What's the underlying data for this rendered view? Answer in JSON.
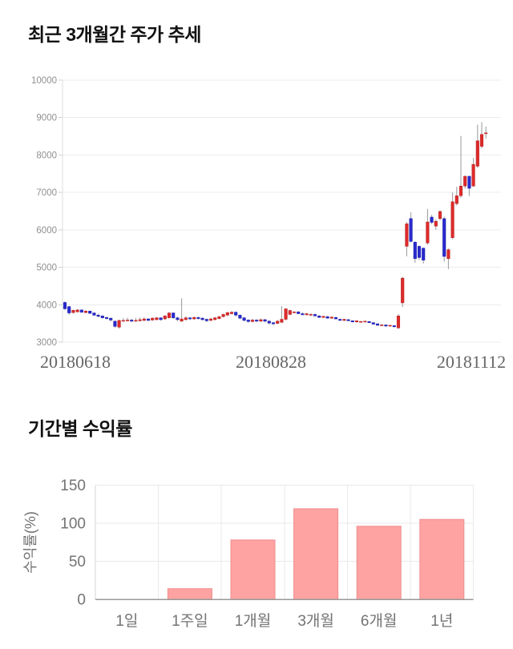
{
  "page": {
    "background": "#ffffff"
  },
  "chart_data": [
    {
      "type": "candlestick",
      "title": "최근 3개월간 주가 추세",
      "x_labels": [
        "20180618",
        "20180828",
        "20181112"
      ],
      "y_ticks": [
        10000,
        9000,
        8000,
        7000,
        6000,
        5000,
        4000,
        3000
      ],
      "ylim": [
        3000,
        10000
      ],
      "grid": "horizontal-only",
      "up_color": "#dd2b2b",
      "down_color": "#2a2ace",
      "wick_color": "#999999",
      "axis_text_color": "#8f8f8f",
      "x_label_color": "#666666",
      "ohlc": [
        [
          4060,
          4090,
          3860,
          3890
        ],
        [
          3950,
          3970,
          3730,
          3780
        ],
        [
          3790,
          3870,
          3760,
          3850
        ],
        [
          3810,
          3880,
          3790,
          3860
        ],
        [
          3860,
          3870,
          3780,
          3800
        ],
        [
          3790,
          3850,
          3770,
          3830
        ],
        [
          3830,
          3840,
          3750,
          3770
        ],
        [
          3780,
          3790,
          3700,
          3720
        ],
        [
          3720,
          3760,
          3660,
          3690
        ],
        [
          3700,
          3710,
          3630,
          3650
        ],
        [
          3660,
          3680,
          3600,
          3630
        ],
        [
          3640,
          3650,
          3550,
          3590
        ],
        [
          3560,
          3570,
          3380,
          3420
        ],
        [
          3400,
          3600,
          3360,
          3580
        ],
        [
          3560,
          3640,
          3540,
          3580
        ],
        [
          3570,
          3650,
          3550,
          3590
        ],
        [
          3590,
          3620,
          3530,
          3560
        ],
        [
          3560,
          3650,
          3540,
          3580
        ],
        [
          3570,
          3660,
          3550,
          3600
        ],
        [
          3580,
          3660,
          3560,
          3620
        ],
        [
          3620,
          3640,
          3560,
          3580
        ],
        [
          3590,
          3660,
          3570,
          3640
        ],
        [
          3600,
          3670,
          3580,
          3650
        ],
        [
          3650,
          3660,
          3570,
          3600
        ],
        [
          3620,
          3720,
          3600,
          3700
        ],
        [
          3650,
          3800,
          3640,
          3780
        ],
        [
          3780,
          3790,
          3620,
          3650
        ],
        [
          3650,
          3680,
          3560,
          3600
        ],
        [
          3560,
          4170,
          3540,
          3620
        ],
        [
          3600,
          3690,
          3580,
          3650
        ],
        [
          3650,
          3670,
          3590,
          3620
        ],
        [
          3620,
          3690,
          3600,
          3660
        ],
        [
          3660,
          3680,
          3600,
          3630
        ],
        [
          3640,
          3660,
          3570,
          3600
        ],
        [
          3610,
          3630,
          3540,
          3570
        ],
        [
          3580,
          3650,
          3560,
          3620
        ],
        [
          3600,
          3670,
          3580,
          3650
        ],
        [
          3630,
          3700,
          3610,
          3680
        ],
        [
          3680,
          3760,
          3660,
          3740
        ],
        [
          3720,
          3810,
          3700,
          3790
        ],
        [
          3760,
          3830,
          3740,
          3800
        ],
        [
          3800,
          3820,
          3690,
          3720
        ],
        [
          3720,
          3740,
          3610,
          3640
        ],
        [
          3650,
          3670,
          3550,
          3580
        ],
        [
          3590,
          3610,
          3520,
          3550
        ],
        [
          3550,
          3620,
          3530,
          3590
        ],
        [
          3590,
          3610,
          3530,
          3560
        ],
        [
          3560,
          3630,
          3540,
          3600
        ],
        [
          3600,
          3620,
          3530,
          3560
        ],
        [
          3560,
          3580,
          3470,
          3510
        ],
        [
          3520,
          3540,
          3450,
          3490
        ],
        [
          3500,
          3590,
          3480,
          3560
        ],
        [
          3530,
          3960,
          3510,
          3610
        ],
        [
          3610,
          3900,
          3580,
          3890
        ],
        [
          3740,
          3870,
          3720,
          3845
        ],
        [
          3800,
          3830,
          3770,
          3805
        ],
        [
          3810,
          3820,
          3750,
          3760
        ],
        [
          3760,
          3800,
          3720,
          3730
        ],
        [
          3730,
          3780,
          3710,
          3760
        ],
        [
          3740,
          3770,
          3700,
          3740
        ],
        [
          3740,
          3760,
          3690,
          3700
        ],
        [
          3700,
          3720,
          3650,
          3660
        ],
        [
          3660,
          3700,
          3640,
          3690
        ],
        [
          3680,
          3700,
          3630,
          3640
        ],
        [
          3640,
          3680,
          3620,
          3670
        ],
        [
          3660,
          3680,
          3610,
          3620
        ],
        [
          3610,
          3630,
          3570,
          3580
        ],
        [
          3580,
          3620,
          3560,
          3610
        ],
        [
          3600,
          3620,
          3560,
          3570
        ],
        [
          3570,
          3580,
          3530,
          3540
        ],
        [
          3540,
          3580,
          3520,
          3570
        ],
        [
          3550,
          3570,
          3530,
          3550
        ],
        [
          3540,
          3570,
          3520,
          3560
        ],
        [
          3550,
          3560,
          3510,
          3520
        ],
        [
          3520,
          3530,
          3470,
          3480
        ],
        [
          3490,
          3500,
          3440,
          3450
        ],
        [
          3460,
          3480,
          3430,
          3460
        ],
        [
          3460,
          3470,
          3400,
          3430
        ],
        [
          3430,
          3460,
          3410,
          3450
        ],
        [
          3440,
          3450,
          3390,
          3410
        ],
        [
          3380,
          3750,
          3350,
          3700
        ],
        [
          4050,
          4750,
          3940,
          4710
        ],
        [
          5560,
          6210,
          5290,
          6160
        ],
        [
          6300,
          6470,
          5660,
          5690
        ],
        [
          5670,
          5700,
          5120,
          5230
        ],
        [
          5560,
          5580,
          5200,
          5260
        ],
        [
          5510,
          5530,
          5100,
          5190
        ],
        [
          5650,
          6560,
          5600,
          6210
        ],
        [
          6340,
          6400,
          6150,
          6200
        ],
        [
          6100,
          6280,
          6000,
          6230
        ],
        [
          6300,
          6520,
          6250,
          6490
        ],
        [
          6300,
          6350,
          5150,
          5290
        ],
        [
          5230,
          5500,
          4950,
          5470
        ],
        [
          5790,
          7000,
          5750,
          6750
        ],
        [
          6700,
          7150,
          6650,
          6910
        ],
        [
          6910,
          8510,
          6860,
          7170
        ],
        [
          7170,
          7460,
          7100,
          7430
        ],
        [
          7430,
          7450,
          6900,
          7110
        ],
        [
          7170,
          7920,
          7150,
          7750
        ],
        [
          7700,
          8810,
          7650,
          8380
        ],
        [
          8230,
          8880,
          8180,
          8550
        ],
        [
          8570,
          8760,
          8440,
          8590
        ]
      ]
    },
    {
      "type": "bar",
      "title": "기간별 수익률",
      "ylabel": "수익률(%)",
      "categories": [
        "1일",
        "1주일",
        "1개월",
        "3개월",
        "6개월",
        "1년"
      ],
      "values": [
        0,
        14,
        78,
        119,
        96,
        105
      ],
      "ylim": [
        0,
        150
      ],
      "y_ticks": [
        0,
        50,
        100,
        150
      ],
      "grid": "on",
      "legend": "none",
      "bar_fill": "#ffa2a2",
      "bar_border": "#ef8d8d",
      "axis_text_color": "#737373"
    }
  ]
}
